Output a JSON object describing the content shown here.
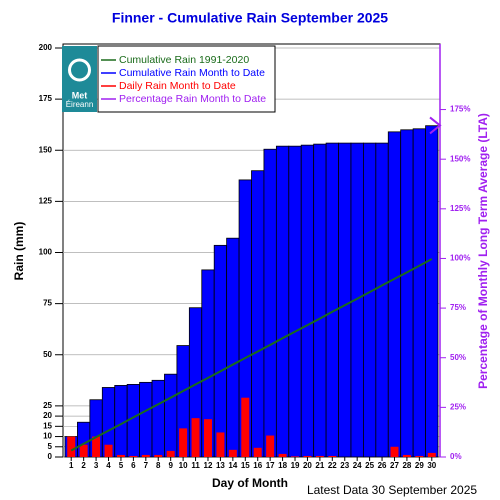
{
  "chart_data": {
    "type": "bar",
    "title": "Finner - Cumulative Rain September   2025",
    "x_label": "Day of Month",
    "y_label": "Rain (mm)",
    "y2_label": "Percentage  of Monthly Long Term Average (LTA)",
    "footer": "Latest Data 30 September 2025",
    "logo": [
      "Met",
      "Éireann"
    ],
    "categories": [
      "1",
      "2",
      "3",
      "4",
      "5",
      "6",
      "7",
      "8",
      "9",
      "10",
      "11",
      "12",
      "13",
      "14",
      "15",
      "16",
      "17",
      "18",
      "19",
      "20",
      "21",
      "22",
      "23",
      "24",
      "25",
      "26",
      "27",
      "28",
      "29",
      "30"
    ],
    "series": [
      {
        "name": "Cumulative Rain 1991-2020",
        "color": "#1a6b1a",
        "kind": "line",
        "values": [
          3.2,
          6.5,
          9.7,
          12.9,
          16.1,
          19.4,
          22.6,
          25.8,
          29.0,
          32.3,
          35.5,
          38.7,
          41.9,
          45.2,
          48.4,
          51.6,
          54.8,
          58.1,
          61.3,
          64.5,
          67.7,
          71.0,
          74.2,
          77.4,
          80.6,
          83.9,
          87.1,
          90.3,
          93.5,
          96.8
        ]
      },
      {
        "name": "Cumulative Rain Month to Date",
        "color": "#0000ff",
        "kind": "bar",
        "values": [
          10,
          17,
          28,
          34,
          35,
          35.5,
          36.5,
          37.5,
          40.5,
          54.5,
          73,
          91.5,
          103.5,
          107,
          135.5,
          140,
          150.5,
          152,
          152,
          152.5,
          153,
          153.5,
          153.5,
          153.5,
          153.5,
          153.5,
          159,
          160,
          160.5,
          162
        ]
      },
      {
        "name": "Daily Rain Month to Date",
        "color": "#ff0000",
        "kind": "narrow",
        "values": [
          10,
          6,
          10,
          6,
          1,
          0.5,
          1,
          1,
          3,
          14,
          19,
          18.5,
          12,
          3.5,
          29,
          4.5,
          10.5,
          1.5,
          0.3,
          0.5,
          0.5,
          0.5,
          0,
          0,
          0,
          0,
          5,
          1,
          0.5,
          2
        ]
      },
      {
        "name": "Percentage Rain Month to Date",
        "color": "#a020f0",
        "kind": "marker",
        "axis": "y2",
        "value": 167
      }
    ],
    "ylim": [
      0,
      200
    ],
    "yticks": [
      0,
      5,
      10,
      15,
      20,
      25,
      50,
      75,
      100,
      125,
      150,
      175,
      200
    ],
    "y2lim": [
      0,
      206
    ],
    "y2ticks": [
      {
        "value": 0,
        "label": "0%"
      },
      {
        "value": 25,
        "label": "25%"
      },
      {
        "value": 50,
        "label": "50%"
      },
      {
        "value": 75,
        "label": "75%"
      },
      {
        "value": 100,
        "label": "100%"
      },
      {
        "value": 125,
        "label": "125%"
      },
      {
        "value": 150,
        "label": "150%"
      },
      {
        "value": 175,
        "label": "175%"
      }
    ],
    "grid": true
  }
}
